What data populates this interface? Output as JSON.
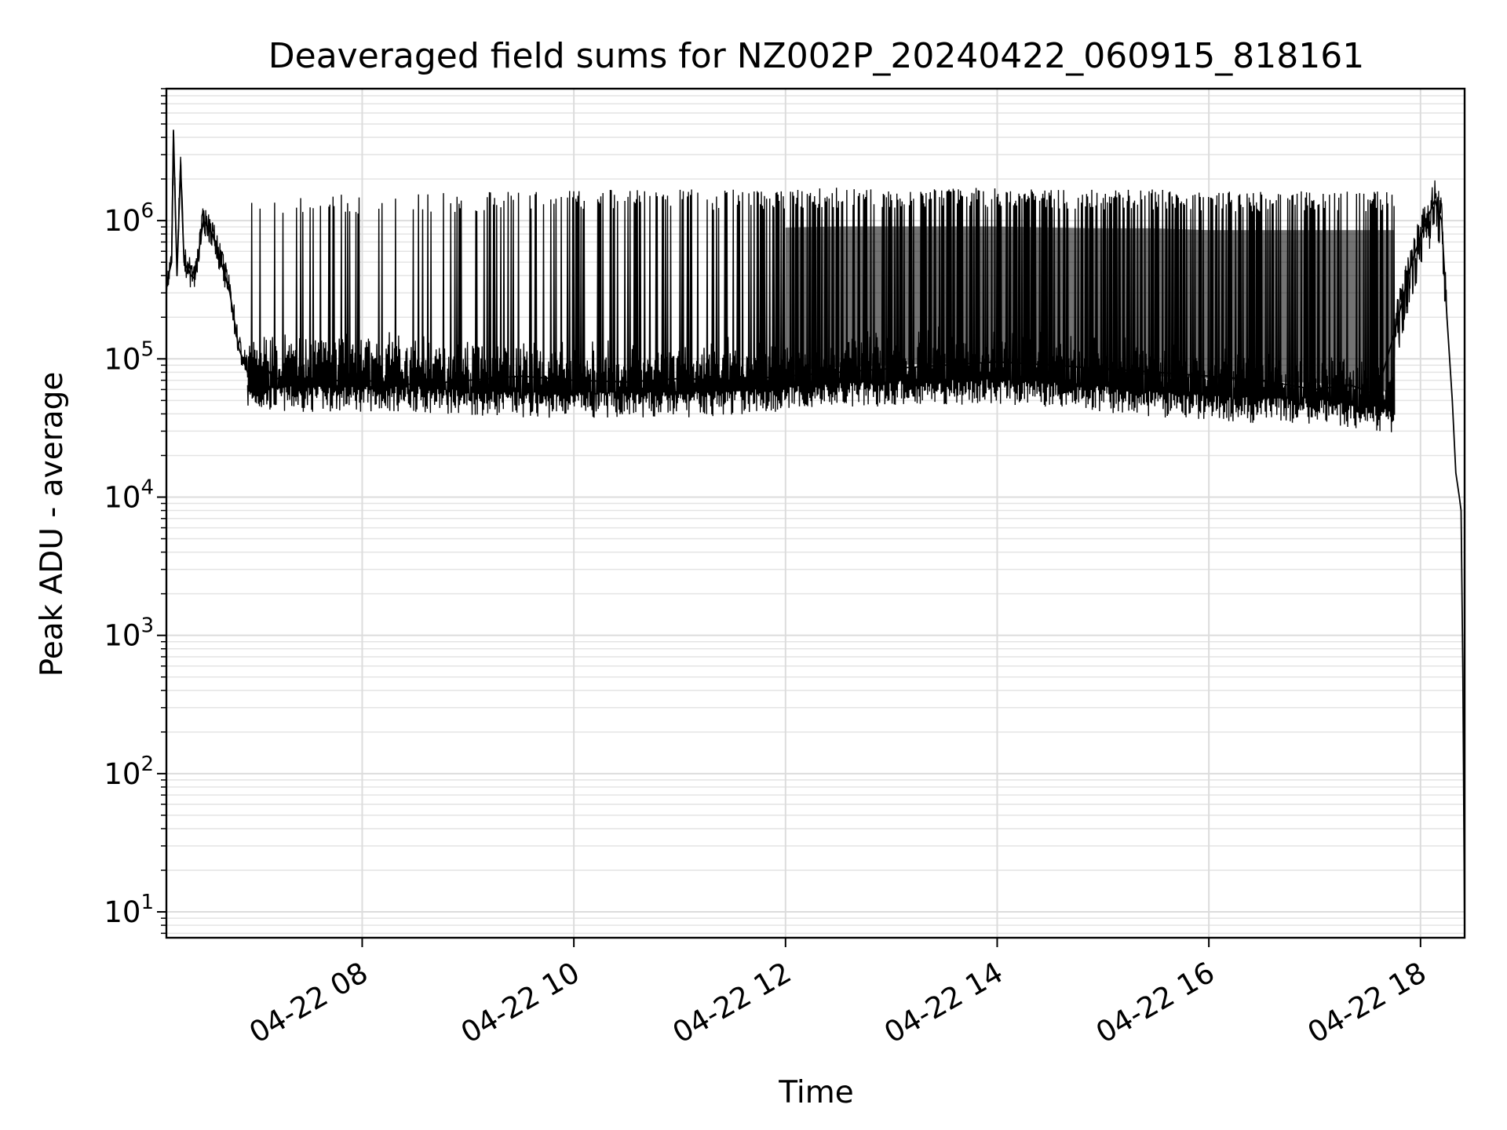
{
  "chart_data": {
    "type": "line",
    "title": "Deaveraged field sums for NZ002P_20240422_060915_818161",
    "xlabel": "Time",
    "ylabel": "Peak ADU - average",
    "yscale": "log",
    "ylim": [
      6.5,
      9000000
    ],
    "xlim": [
      "2024-04-22 06:09",
      "2024-04-22 18:25"
    ],
    "x_ticks": [
      {
        "x": "2024-04-22 08:00",
        "label": "04-22 08"
      },
      {
        "x": "2024-04-22 10:00",
        "label": "04-22 10"
      },
      {
        "x": "2024-04-22 12:00",
        "label": "04-22 12"
      },
      {
        "x": "2024-04-22 14:00",
        "label": "04-22 14"
      },
      {
        "x": "2024-04-22 16:00",
        "label": "04-22 16"
      },
      {
        "x": "2024-04-22 18:00",
        "label": "04-22 18"
      }
    ],
    "y_ticks": [
      {
        "value": 10,
        "base": "10",
        "exp": "1"
      },
      {
        "value": 100,
        "base": "10",
        "exp": "2"
      },
      {
        "value": 1000,
        "base": "10",
        "exp": "3"
      },
      {
        "value": 10000,
        "base": "10",
        "exp": "4"
      },
      {
        "value": 100000,
        "base": "10",
        "exp": "5"
      },
      {
        "value": 1000000,
        "base": "10",
        "exp": "6"
      }
    ],
    "grid": true,
    "line_color": "#000000",
    "series": [
      {
        "x": [
          "2024-04-22 06:09",
          "2024-04-22 06:12",
          "2024-04-22 06:13",
          "2024-04-22 06:15",
          "2024-04-22 06:17",
          "2024-04-22 06:19",
          "2024-04-22 06:21",
          "2024-04-22 06:23",
          "2024-04-22 06:25",
          "2024-04-22 06:30",
          "2024-04-22 06:35",
          "2024-04-22 06:40",
          "2024-04-22 06:45",
          "2024-04-22 06:50",
          "2024-04-22 06:55",
          "2024-04-22 07:00",
          "2024-04-22 07:05",
          "2024-04-22 07:10",
          "2024-04-22 07:20",
          "2024-04-22 07:30",
          "2024-04-22 07:40",
          "2024-04-22 07:50",
          "2024-04-22 08:00",
          "2024-04-22 08:30",
          "2024-04-22 09:00",
          "2024-04-22 09:30",
          "2024-04-22 10:00",
          "2024-04-22 10:30",
          "2024-04-22 11:00",
          "2024-04-22 11:30",
          "2024-04-22 12:00",
          "2024-04-22 12:30",
          "2024-04-22 13:00",
          "2024-04-22 13:30",
          "2024-04-22 14:00",
          "2024-04-22 14:30",
          "2024-04-22 15:00",
          "2024-04-22 15:30",
          "2024-04-22 16:00",
          "2024-04-22 16:30",
          "2024-04-22 17:00",
          "2024-04-22 17:20",
          "2024-04-22 17:35",
          "2024-04-22 17:45",
          "2024-04-22 17:55",
          "2024-04-22 18:02",
          "2024-04-22 18:08",
          "2024-04-22 18:12",
          "2024-04-22 18:15",
          "2024-04-22 18:18",
          "2024-04-22 18:20",
          "2024-04-22 18:22",
          "2024-04-22 18:23",
          "2024-04-22 18:24",
          "2024-04-22 18:25"
        ],
        "y": [
          350000,
          500000,
          4500000,
          400000,
          2500000,
          500000,
          450000,
          400000,
          380000,
          1000000,
          800000,
          500000,
          300000,
          120000,
          80000,
          75000,
          90000,
          70000,
          80000,
          65000,
          72000,
          68000,
          70000,
          65000,
          70000,
          75000,
          70000,
          68000,
          72000,
          70000,
          75000,
          80000,
          85000,
          90000,
          95000,
          90000,
          85000,
          80000,
          75000,
          70000,
          60000,
          65000,
          55000,
          150000,
          500000,
          900000,
          1400000,
          1000000,
          200000,
          50000,
          15000,
          10000,
          8000,
          500,
          6.8
        ]
      }
    ],
    "envelope": {
      "x": [
        "2024-04-22 06:55",
        "2024-04-22 07:30",
        "2024-04-22 08:00",
        "2024-04-22 08:30",
        "2024-04-22 09:00",
        "2024-04-22 09:30",
        "2024-04-22 10:00",
        "2024-04-22 10:30",
        "2024-04-22 11:00",
        "2024-04-22 11:30",
        "2024-04-22 12:00",
        "2024-04-22 12:30",
        "2024-04-22 13:00",
        "2024-04-22 13:30",
        "2024-04-22 14:00",
        "2024-04-22 14:30",
        "2024-04-22 15:00",
        "2024-04-22 15:30",
        "2024-04-22 16:00",
        "2024-04-22 16:30",
        "2024-04-22 17:00",
        "2024-04-22 17:30",
        "2024-04-22 17:45"
      ],
      "upper": [
        1400000,
        1500000,
        1500000,
        1500000,
        1550000,
        1600000,
        1600000,
        1600000,
        1600000,
        1600000,
        1620000,
        1650000,
        1650000,
        1650000,
        1650000,
        1620000,
        1600000,
        1600000,
        1550000,
        1550000,
        1550000,
        1550000,
        1550000
      ],
      "lower": [
        55000,
        55000,
        55000,
        55000,
        52000,
        50000,
        50000,
        50000,
        50000,
        52000,
        55000,
        58000,
        60000,
        62000,
        62000,
        60000,
        55000,
        50000,
        48000,
        45000,
        45000,
        40000,
        38000
      ],
      "dense_fill_from": "2024-04-22 12:00"
    }
  }
}
